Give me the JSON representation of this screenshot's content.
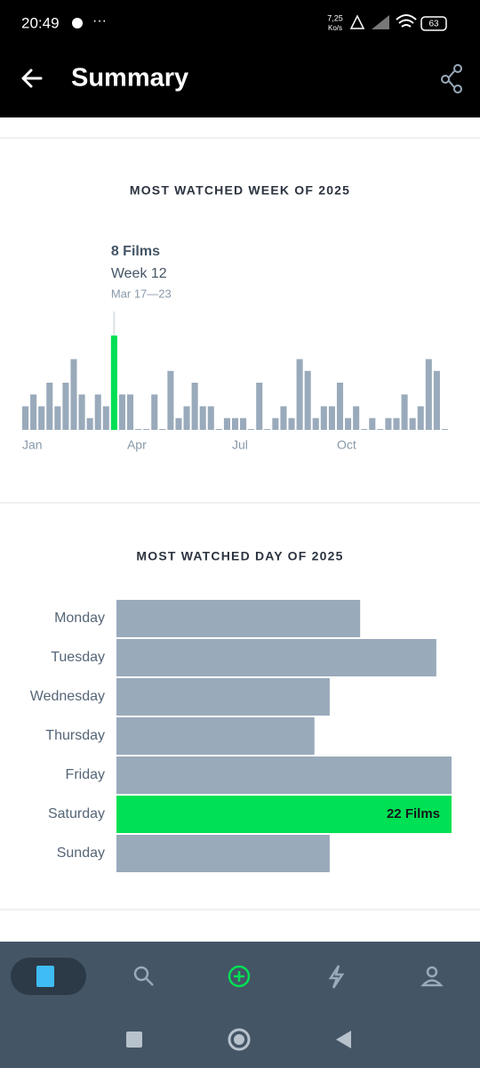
{
  "status_bar": {
    "time": "20:49",
    "speed": "7,25",
    "speed_unit": "Ko/s",
    "battery": "63"
  },
  "header": {
    "title": "Summary"
  },
  "chart_data": [
    {
      "type": "bar",
      "title": "MOST WATCHED WEEK OF 2025",
      "x": [
        1,
        2,
        3,
        4,
        5,
        6,
        7,
        8,
        9,
        10,
        11,
        12,
        13,
        14,
        15,
        16,
        17,
        18,
        19,
        20,
        21,
        22,
        23,
        24,
        25,
        26,
        27,
        28,
        29,
        30,
        31,
        32,
        33,
        34,
        35,
        36,
        37,
        38,
        39,
        40,
        41,
        42,
        43,
        44,
        45,
        46,
        47,
        48,
        49,
        50,
        51,
        52,
        53
      ],
      "values": [
        2,
        3,
        2,
        4,
        2,
        4,
        6,
        3,
        1,
        3,
        2,
        8,
        3,
        3,
        0,
        0,
        3,
        0,
        5,
        1,
        2,
        4,
        2,
        2,
        0,
        1,
        1,
        1,
        0,
        4,
        0,
        1,
        2,
        1,
        6,
        5,
        1,
        2,
        2,
        4,
        1,
        2,
        0,
        1,
        0,
        1,
        1,
        3,
        1,
        2,
        6,
        5,
        0
      ],
      "color": "#99aabb",
      "highlight_color": "#00e054",
      "highlight": {
        "x": 12,
        "label": "8 Films",
        "week": "Week 12",
        "dates": "Mar 17—23"
      },
      "xticks": [
        {
          "value": 1,
          "label": "Jan"
        },
        {
          "value": 14,
          "label": "Apr"
        },
        {
          "value": 27,
          "label": "Jul"
        },
        {
          "value": 40,
          "label": "Oct"
        }
      ]
    },
    {
      "type": "hbar",
      "title": "MOST WATCHED DAY OF 2025",
      "categories": [
        "Monday",
        "Tuesday",
        "Wednesday",
        "Thursday",
        "Friday",
        "Saturday",
        "Sunday"
      ],
      "values": [
        16,
        21,
        14,
        13,
        22,
        22,
        14
      ],
      "value_labels": [
        null,
        null,
        null,
        null,
        null,
        "22 Films",
        null
      ],
      "color": "#99aabb",
      "highlight_color": "#00e054"
    }
  ]
}
